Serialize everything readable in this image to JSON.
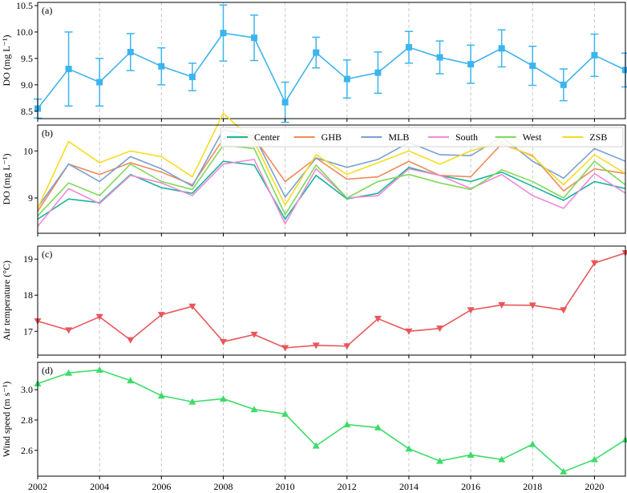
{
  "xticks": [
    2002,
    2004,
    2006,
    2008,
    2010,
    2012,
    2014,
    2016,
    2018,
    2020
  ],
  "chart_data": [
    {
      "panel": "(a)",
      "type": "line",
      "ylabel": "DO (mg L⁻¹)",
      "xlim": [
        2002,
        2021
      ],
      "ylim": [
        8.36,
        10.56
      ],
      "yticks": [
        8.5,
        9.0,
        9.5,
        10.0,
        10.5
      ],
      "ytick_labels": [
        "8.5",
        "9.0",
        "9.5",
        "10.0",
        "10.5"
      ],
      "marker": "square",
      "grid": "vertical dashed",
      "series": [
        {
          "color": "#3cb4ee",
          "x": [
            2002,
            2003,
            2004,
            2005,
            2006,
            2007,
            2008,
            2009,
            2010,
            2011,
            2012,
            2013,
            2014,
            2015,
            2016,
            2017,
            2018,
            2019,
            2020,
            2021
          ],
          "values": [
            8.55,
            9.3,
            9.05,
            9.62,
            9.35,
            9.15,
            9.98,
            9.89,
            8.67,
            9.61,
            9.11,
            9.23,
            9.71,
            9.52,
            9.39,
            9.69,
            9.36,
            9.0,
            9.56,
            9.28
          ],
          "error": [
            0.18,
            0.7,
            0.45,
            0.35,
            0.35,
            0.26,
            0.53,
            0.43,
            0.38,
            0.29,
            0.36,
            0.39,
            0.3,
            0.31,
            0.36,
            0.35,
            0.37,
            0.3,
            0.4,
            0.32
          ]
        }
      ]
    },
    {
      "panel": "(b)",
      "type": "line",
      "ylabel": "DO (mg L⁻¹)",
      "xlim": [
        2002,
        2021
      ],
      "ylim": [
        8.25,
        10.55
      ],
      "yticks": [
        9,
        10
      ],
      "ytick_labels": [
        "9",
        "10"
      ],
      "legend": "top",
      "grid": "vertical dashed",
      "x": [
        2002,
        2003,
        2004,
        2005,
        2006,
        2007,
        2008,
        2009,
        2010,
        2011,
        2012,
        2013,
        2014,
        2015,
        2016,
        2017,
        2018,
        2019,
        2020,
        2021
      ],
      "series": [
        {
          "name": "Center",
          "color": "#17b59c",
          "values": [
            8.55,
            8.98,
            8.9,
            9.5,
            9.22,
            9.1,
            9.78,
            9.7,
            8.55,
            9.48,
            8.98,
            9.1,
            9.65,
            9.48,
            9.35,
            9.55,
            9.25,
            8.95,
            9.35,
            9.2
          ]
        },
        {
          "name": "GHB",
          "color": "#f08a5a",
          "values": [
            8.72,
            9.72,
            9.5,
            9.75,
            9.55,
            9.28,
            10.25,
            10.28,
            9.35,
            9.85,
            9.4,
            9.45,
            9.78,
            9.48,
            9.45,
            10.15,
            9.9,
            9.15,
            9.62,
            9.52
          ]
        },
        {
          "name": "MLB",
          "color": "#7b9fd3",
          "values": [
            8.8,
            9.72,
            9.35,
            9.88,
            9.62,
            9.25,
            10.45,
            10.32,
            9.02,
            9.85,
            9.65,
            9.82,
            10.18,
            9.92,
            9.9,
            10.3,
            9.78,
            9.42,
            10.05,
            9.78
          ]
        },
        {
          "name": "South",
          "color": "#f08ad6",
          "values": [
            8.4,
            9.2,
            8.88,
            9.48,
            9.32,
            9.05,
            9.72,
            9.82,
            8.45,
            9.62,
            9.0,
            9.05,
            9.62,
            9.48,
            9.2,
            9.5,
            9.05,
            8.78,
            9.52,
            9.1
          ]
        },
        {
          "name": "West",
          "color": "#7ed957",
          "values": [
            8.62,
            9.32,
            9.05,
            9.72,
            9.35,
            9.18,
            10.12,
            10.05,
            8.65,
            9.7,
            9.0,
            9.35,
            9.5,
            9.32,
            9.18,
            9.6,
            9.35,
            9.0,
            9.78,
            9.28
          ]
        },
        {
          "name": "ZSB",
          "color": "#f7dc1e",
          "values": [
            8.78,
            10.2,
            9.75,
            10.0,
            9.88,
            9.45,
            10.8,
            10.2,
            8.85,
            9.92,
            9.5,
            9.75,
            10.0,
            9.72,
            10.0,
            10.18,
            9.88,
            9.28,
            9.92,
            9.52
          ]
        }
      ]
    },
    {
      "panel": "(c)",
      "type": "line",
      "ylabel": "Air temperature (°C)",
      "xlim": [
        2002,
        2021
      ],
      "ylim": [
        16.34,
        19.36
      ],
      "yticks": [
        17,
        18,
        19
      ],
      "ytick_labels": [
        "17",
        "18",
        "19"
      ],
      "marker": "triangle-down",
      "grid": "vertical dashed",
      "series": [
        {
          "color": "#e8575a",
          "x": [
            2002,
            2003,
            2004,
            2005,
            2006,
            2007,
            2008,
            2009,
            2010,
            2011,
            2012,
            2013,
            2014,
            2015,
            2016,
            2017,
            2018,
            2019,
            2020,
            2021
          ],
          "values": [
            17.28,
            17.03,
            17.4,
            16.76,
            17.46,
            17.69,
            16.71,
            16.91,
            16.54,
            16.61,
            16.59,
            17.35,
            17.0,
            17.08,
            17.59,
            17.73,
            17.72,
            17.59,
            18.89,
            19.17
          ]
        }
      ]
    },
    {
      "panel": "(d)",
      "type": "line",
      "ylabel": "Wind speed (m s⁻¹)",
      "xlim": [
        2002,
        2021
      ],
      "ylim": [
        2.43,
        3.18
      ],
      "yticks": [
        2.6,
        2.8,
        3.0
      ],
      "ytick_labels": [
        "2.6",
        "2.8",
        "3.0"
      ],
      "marker": "triangle-up",
      "grid": "vertical dashed",
      "series": [
        {
          "color": "#3ddc6a",
          "x": [
            2002,
            2003,
            2004,
            2005,
            2006,
            2007,
            2008,
            2009,
            2010,
            2011,
            2012,
            2013,
            2014,
            2015,
            2016,
            2017,
            2018,
            2019,
            2020,
            2021
          ],
          "values": [
            3.04,
            3.11,
            3.13,
            3.06,
            2.96,
            2.92,
            2.94,
            2.87,
            2.84,
            2.63,
            2.77,
            2.75,
            2.61,
            2.53,
            2.57,
            2.54,
            2.64,
            2.46,
            2.54,
            2.67
          ]
        }
      ]
    }
  ]
}
